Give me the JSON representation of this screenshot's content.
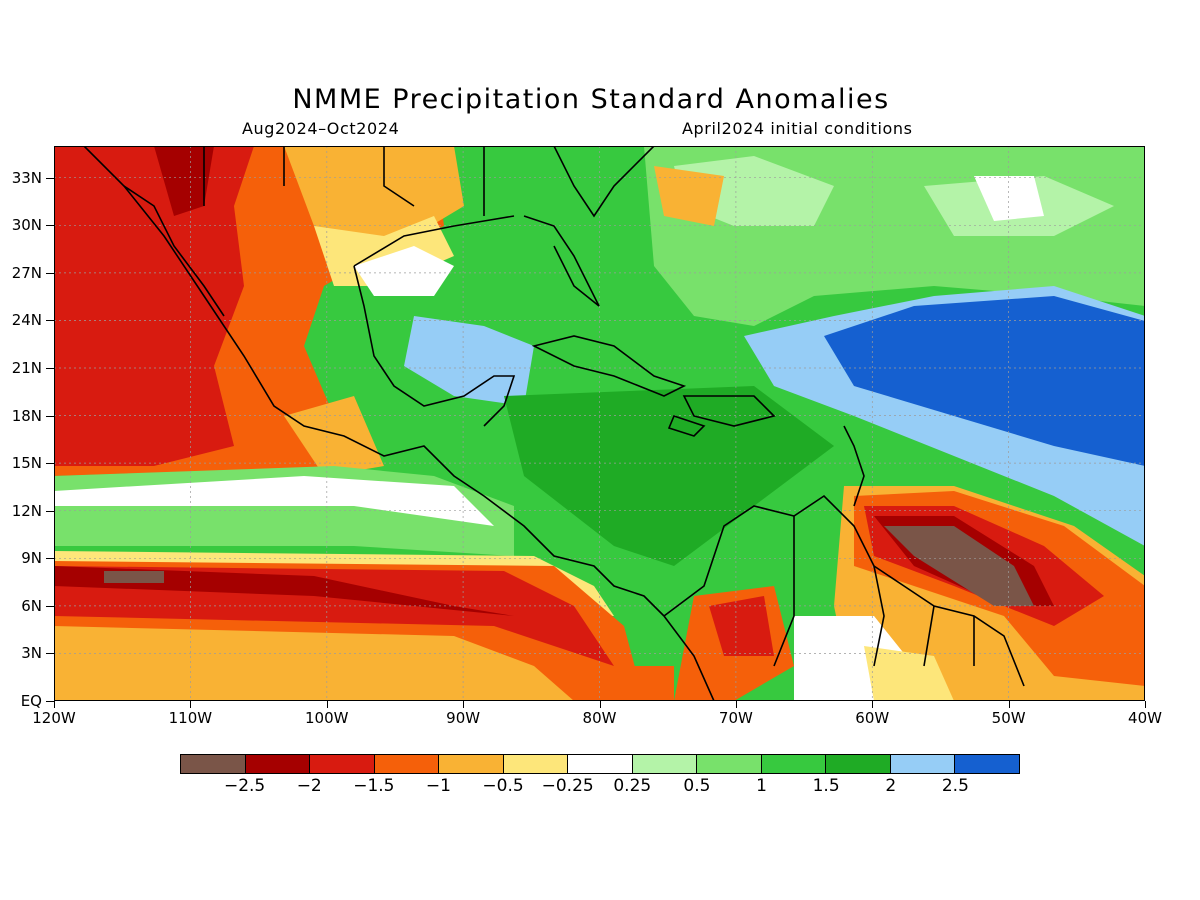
{
  "title": "NMME Precipitation Standard Anomalies",
  "subtitle_left": "Aug2024–Oct2024",
  "subtitle_right": "April2024 initial conditions",
  "lat_ticks": [
    "33N",
    "30N",
    "27N",
    "24N",
    "21N",
    "18N",
    "15N",
    "12N",
    "9N",
    "6N",
    "3N",
    "EQ"
  ],
  "lat_values": [
    33,
    30,
    27,
    24,
    21,
    18,
    15,
    12,
    9,
    6,
    3,
    0
  ],
  "lon_ticks": [
    "120W",
    "110W",
    "100W",
    "90W",
    "80W",
    "70W",
    "60W",
    "50W",
    "40W"
  ],
  "lon_values": [
    -120,
    -110,
    -100,
    -90,
    -80,
    -70,
    -60,
    -50,
    -40
  ],
  "map_extent": {
    "lon": [
      -120,
      -40
    ],
    "lat": [
      0,
      35
    ]
  },
  "legend": {
    "colors": [
      "#7a5548",
      "#a50000",
      "#d81b10",
      "#f5600a",
      "#f9b234",
      "#fde67a",
      "#ffffff",
      "#b4f3a8",
      "#78e16b",
      "#37c93f",
      "#1fab25",
      "#96cdf6",
      "#1560d0"
    ],
    "labels": [
      "−2.5",
      "−2",
      "−1.5",
      "−1",
      "−0.5",
      "−0.25",
      "0.25",
      "0.5",
      "1",
      "1.5",
      "2",
      "2.5"
    ]
  }
}
